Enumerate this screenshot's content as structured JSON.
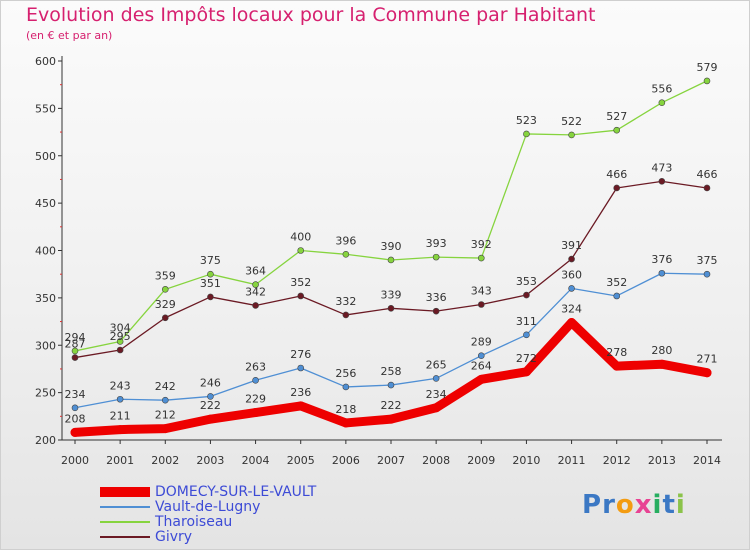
{
  "chart_data": {
    "type": "line",
    "title": "Evolution des Impôts locaux pour la Commune par Habitant",
    "subtitle": "(en € et par an)",
    "x": [
      "2000",
      "2001",
      "2002",
      "2003",
      "2004",
      "2005",
      "2006",
      "2007",
      "2008",
      "2009",
      "2010",
      "2011",
      "2012",
      "2013",
      "2014"
    ],
    "yticks": [
      200,
      250,
      300,
      350,
      400,
      450,
      500,
      550,
      600
    ],
    "ylim": [
      200,
      600
    ],
    "grid": false,
    "legend_position": "bottom-left",
    "series": [
      {
        "name": "DOMECY-SUR-LE-VAULT",
        "color": "#ee0000",
        "values": [
          208,
          211,
          212,
          222,
          229,
          236,
          218,
          222,
          234,
          264,
          272,
          324,
          278,
          280,
          271
        ],
        "labels": [
          "208",
          "211",
          "212",
          "222",
          "229",
          "236",
          "218",
          "222",
          "234",
          "264",
          "272",
          "324",
          "278",
          "280",
          "271"
        ]
      },
      {
        "name": "Vault-de-Lugny",
        "color": "#4f8fd4",
        "values": [
          234,
          243,
          242,
          246,
          263,
          276,
          256,
          258,
          265,
          289,
          311,
          360,
          352,
          376,
          375
        ],
        "labels": [
          "234",
          "243",
          "242",
          "246",
          "263",
          "276",
          "256",
          "258",
          "265",
          "289",
          "311",
          "360",
          "352",
          "376",
          "375"
        ]
      },
      {
        "name": "Tharoiseau",
        "color": "#86d43e",
        "values": [
          294,
          304,
          359,
          375,
          364,
          400,
          396,
          390,
          393,
          392,
          523,
          522,
          527,
          556,
          579
        ],
        "labels": [
          "294",
          "304",
          "359",
          "375",
          "364",
          "400",
          "396",
          "390",
          "393",
          "392",
          "523",
          "522",
          "527",
          "556",
          "579"
        ]
      },
      {
        "name": "Givry",
        "color": "#6b1a24",
        "values": [
          287,
          295,
          329,
          351,
          342,
          352,
          332,
          339,
          336,
          343,
          353,
          391,
          466,
          473,
          466
        ],
        "labels": [
          "287",
          "295",
          "329",
          "351",
          "342",
          "352",
          "332",
          "339",
          "336",
          "343",
          "353",
          "391",
          "466",
          "473",
          "466"
        ]
      }
    ]
  },
  "logo": {
    "text": "Proxiti",
    "letters": [
      {
        "ch": "P",
        "color": "#3b78c4"
      },
      {
        "ch": "r",
        "color": "#3b78c4"
      },
      {
        "ch": "o",
        "color": "#f39c12"
      },
      {
        "ch": "x",
        "color": "#e84393"
      },
      {
        "ch": "i",
        "color": "#27ae60"
      },
      {
        "ch": "t",
        "color": "#3b78c4"
      },
      {
        "ch": "i",
        "color": "#8bc34a"
      }
    ]
  }
}
